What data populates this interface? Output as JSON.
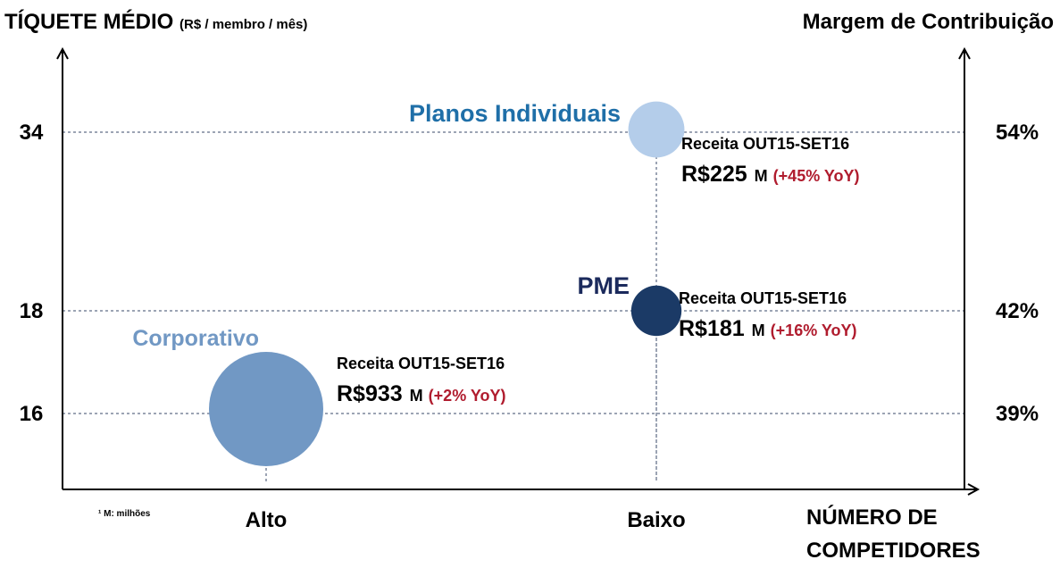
{
  "y_axis": {
    "title": "TÍQUETE MÉDIO",
    "unit": "(R$ / membro / mês)"
  },
  "y2_axis": {
    "title": "Margem de Contribuição"
  },
  "x_axis": {
    "title_lines": [
      "NÚMERO DE",
      "COMPETIDORES"
    ],
    "categories": [
      "Alto",
      "Baixo"
    ]
  },
  "footnote": "¹ M: milhões",
  "segments": [
    {
      "name": "Planos Individuais",
      "color": "#b4cdea",
      "name_color": "#1f6fa8",
      "ticket": "34",
      "margin": "54%",
      "revenue_title": "Receita OUT15-SET16",
      "revenue": 225,
      "revenue_label": "R$225",
      "unit": "M",
      "growth": "(+45% YoY)"
    },
    {
      "name": "PME",
      "color": "#1b3a66",
      "name_color": "#1b2a5c",
      "ticket": "18",
      "margin": "42%",
      "revenue_title": "Receita OUT15-SET16",
      "revenue": 181,
      "revenue_label": "R$181",
      "unit": "M",
      "growth": "(+16% YoY)"
    },
    {
      "name": "Corporativo",
      "color": "#7198c4",
      "name_color": "#7198c4",
      "ticket": "16",
      "margin": "39%",
      "revenue_title": "Receita OUT15-SET16",
      "revenue": 933,
      "revenue_label": "R$933",
      "unit": "M",
      "growth": "(+2% YoY)"
    }
  ]
}
